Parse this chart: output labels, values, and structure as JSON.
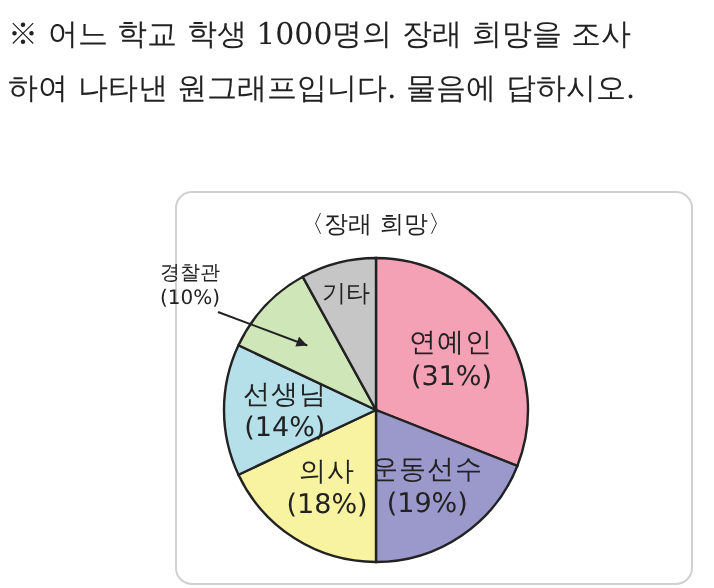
{
  "chart_data": {
    "type": "pie",
    "title": "〈장래 희망〉",
    "annotations": [
      "※ 어느 학교 학생 1000명의 장래 희망을 조사하여 나타낸 원그래프입니다. 물음에 답하시오."
    ],
    "categories": [
      "연예인",
      "운동선수",
      "의사",
      "선생님",
      "경찰관",
      "기타"
    ],
    "values": [
      31,
      19,
      18,
      14,
      10,
      8
    ],
    "value_labels": [
      "(31%)",
      "(19%)",
      "(18%)",
      "(14%)",
      "(10%)",
      null
    ],
    "colors": [
      "#f4a0b5",
      "#9b98cc",
      "#f7f3a0",
      "#b5e0ea",
      "#cfe6b8",
      "#c6c6c6"
    ]
  }
}
